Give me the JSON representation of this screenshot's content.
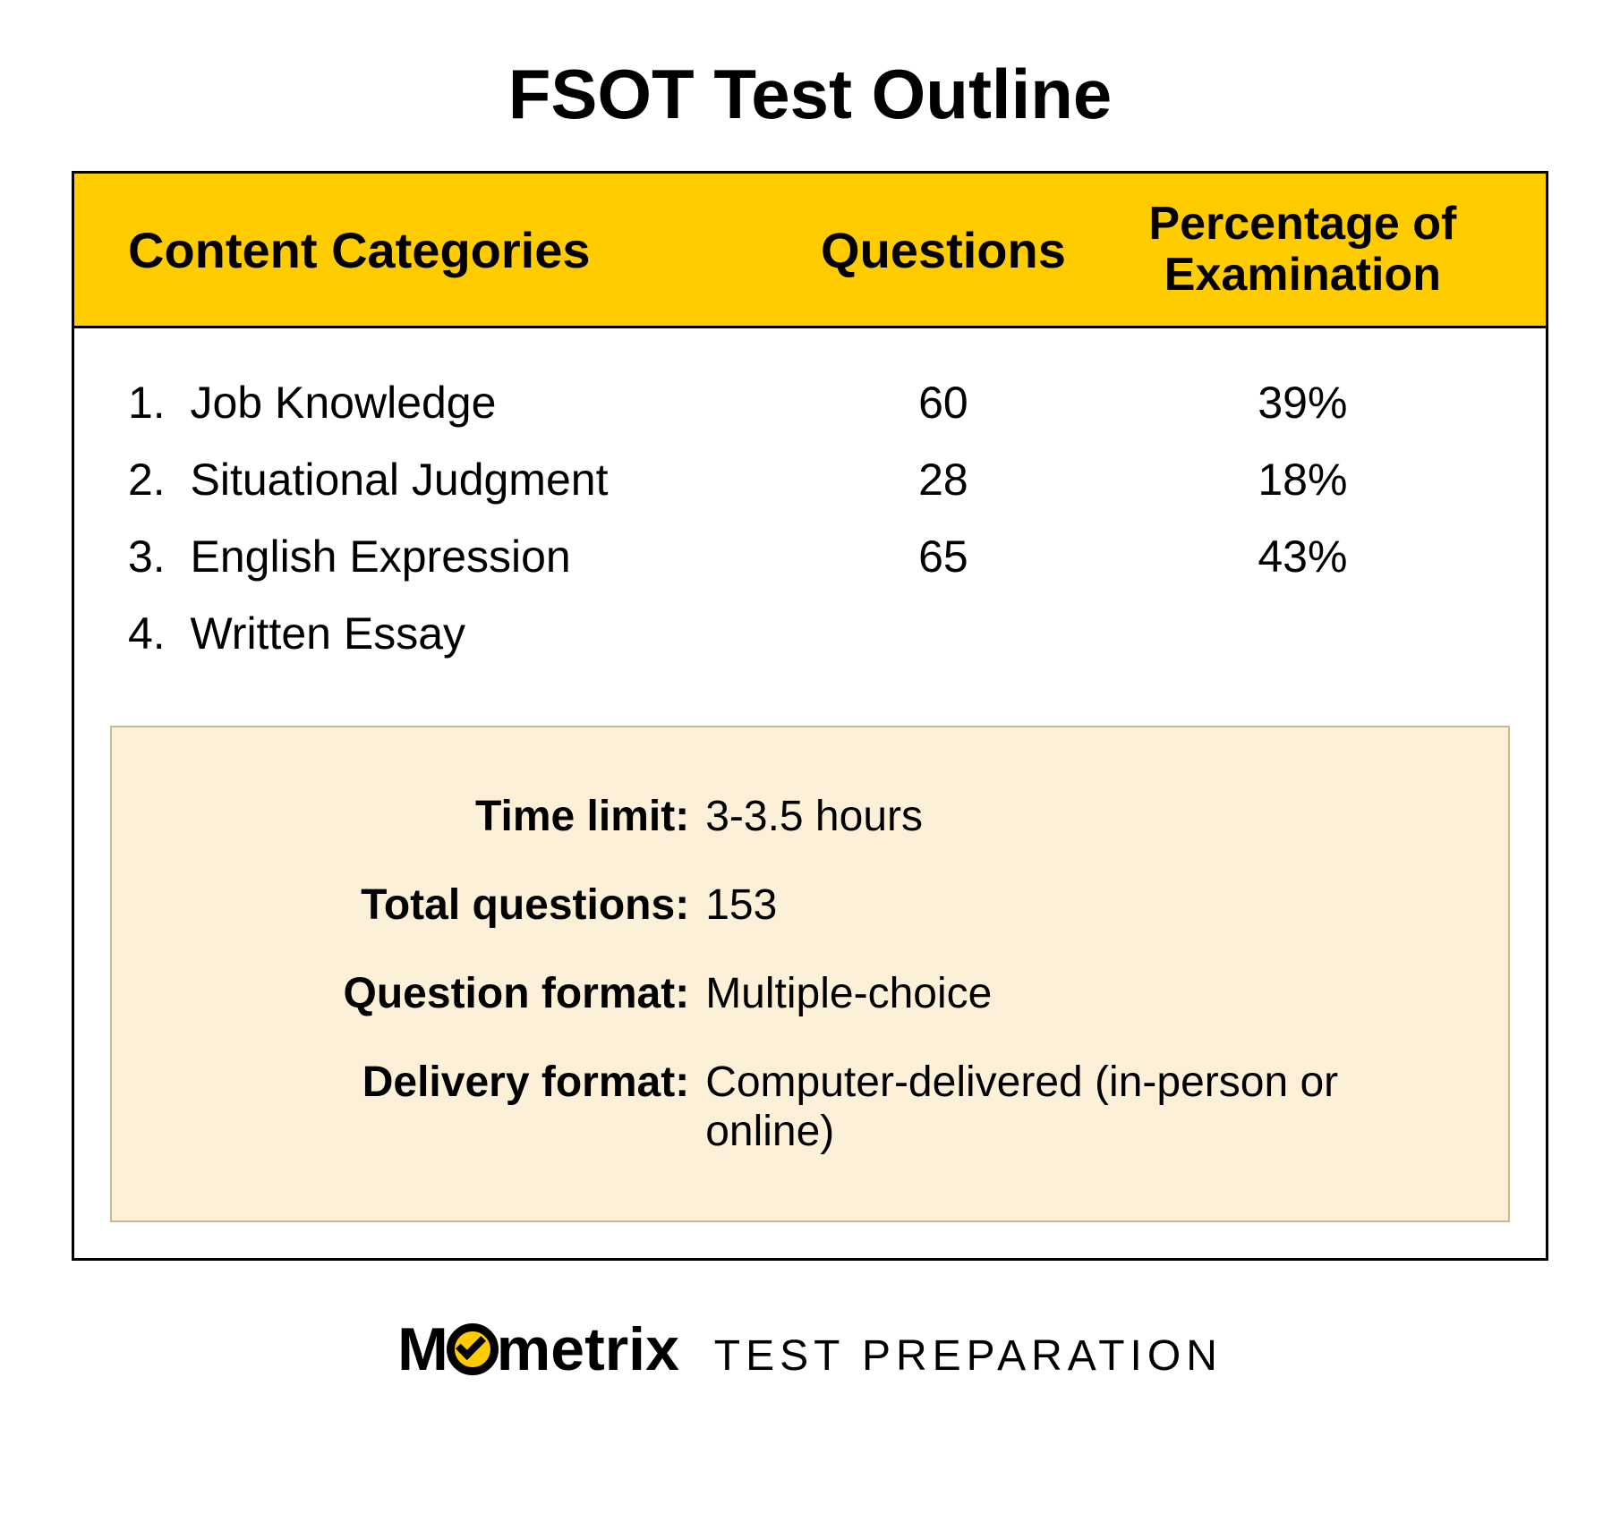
{
  "title": "FSOT Test Outline",
  "colors": {
    "header_bg": "#ffcc00",
    "panel_border": "#000000",
    "info_bg": "#fdf0d9",
    "info_border": "#c9b98f",
    "text": "#000000",
    "logo_accent": "#ffcc00"
  },
  "typography": {
    "title_fontsize": 78,
    "header_fontsize": 56,
    "row_fontsize": 50,
    "info_fontsize": 48,
    "logo_brand_fontsize": 68,
    "logo_suffix_fontsize": 48
  },
  "table": {
    "columns": [
      "Content Categories",
      "Questions",
      "Percentage of Examination"
    ],
    "rows": [
      {
        "idx": "1.",
        "name": "Job Knowledge",
        "questions": "60",
        "pct": "39%"
      },
      {
        "idx": "2.",
        "name": "Situational Judgment",
        "questions": "28",
        "pct": "18%"
      },
      {
        "idx": "3.",
        "name": "English Expression",
        "questions": "65",
        "pct": "43%"
      },
      {
        "idx": "4.",
        "name": "Written Essay",
        "questions": "",
        "pct": ""
      }
    ]
  },
  "info": {
    "time_limit": {
      "label": "Time limit:",
      "value": "3-3.5 hours"
    },
    "total_questions": {
      "label": "Total questions:",
      "value": "153"
    },
    "question_format": {
      "label": "Question format:",
      "value": "Multiple-choice"
    },
    "delivery_format": {
      "label": "Delivery format:",
      "value": "Computer-delivered (in-person or online)"
    }
  },
  "logo": {
    "pre": "M",
    "post": "metrix",
    "suffix": "TEST  PREPARATION"
  }
}
